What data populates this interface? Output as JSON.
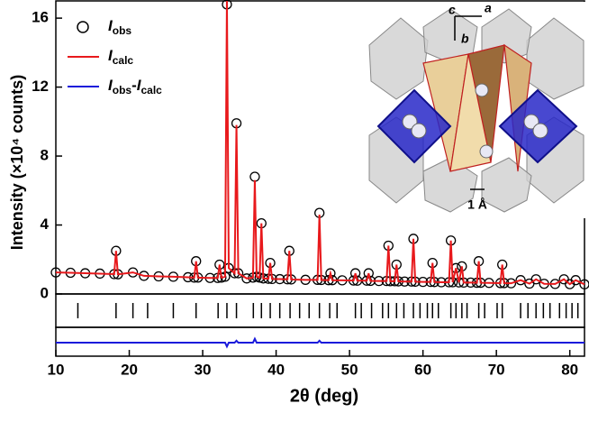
{
  "chart_data": {
    "type": "line",
    "xlabel": "2θ (deg)",
    "ylabel": "Intensity (×10⁴ counts)",
    "xlim": [
      10,
      82
    ],
    "xticks": [
      10,
      20,
      30,
      40,
      50,
      60,
      70,
      80
    ],
    "ylim": [
      0,
      17
    ],
    "yticks": [
      0,
      4,
      8,
      12,
      16
    ],
    "difflim": [
      -0.6,
      0.6
    ],
    "x": [
      10,
      12,
      14,
      16,
      17.95,
      18.2,
      18.45,
      20.5,
      22,
      24,
      26,
      28,
      28.85,
      29.1,
      29.35,
      31,
      32.05,
      32.3,
      32.55,
      33.05,
      33.3,
      33.55,
      34.35,
      34.6,
      34.85,
      36,
      36.85,
      37.1,
      37.35,
      37.75,
      38.0,
      38.25,
      38.95,
      39.2,
      39.45,
      40.5,
      41.55,
      41.8,
      42.05,
      44,
      45.65,
      45.9,
      46.15,
      47.15,
      47.4,
      47.65,
      49,
      50.55,
      50.8,
      51.05,
      52.35,
      52.6,
      52.85,
      54,
      55.05,
      55.3,
      55.55,
      56.15,
      56.4,
      56.65,
      57.5,
      58.45,
      58.7,
      58.95,
      60,
      61.05,
      61.3,
      61.55,
      62.5,
      63.55,
      63.8,
      64.05,
      64.5,
      64.9,
      65.3,
      65.55,
      66.5,
      67.35,
      67.6,
      67.85,
      69,
      70.55,
      70.8,
      71.05,
      72,
      73.3,
      74.5,
      75.4,
      76.5,
      78,
      79.2,
      80,
      80.8,
      82
    ],
    "series": [
      {
        "name": [
          {
            "text": "I",
            "style": "italic"
          },
          {
            "text": "obs",
            "style": "sub"
          }
        ],
        "color": "#000000",
        "marker": "circle",
        "values": [
          1.25,
          1.23,
          1.2,
          1.18,
          1.15,
          2.5,
          1.14,
          1.25,
          1.05,
          1.02,
          1.0,
          0.97,
          0.95,
          1.9,
          0.95,
          0.93,
          0.93,
          1.7,
          0.95,
          1.0,
          16.8,
          1.5,
          1.2,
          9.9,
          1.2,
          0.9,
          0.95,
          6.8,
          1.0,
          0.95,
          4.1,
          0.9,
          0.88,
          1.8,
          0.87,
          0.86,
          0.85,
          2.5,
          0.84,
          0.82,
          0.82,
          4.7,
          0.81,
          0.8,
          1.2,
          0.8,
          0.79,
          0.78,
          1.2,
          0.77,
          0.77,
          1.2,
          0.76,
          0.75,
          0.75,
          2.8,
          0.74,
          0.74,
          1.7,
          0.73,
          0.72,
          0.72,
          3.2,
          0.71,
          0.7,
          0.7,
          1.8,
          0.69,
          0.68,
          0.68,
          3.1,
          0.68,
          1.5,
          0.67,
          1.6,
          0.66,
          0.66,
          0.65,
          1.9,
          0.65,
          0.64,
          0.63,
          1.7,
          0.63,
          0.62,
          0.8,
          0.6,
          0.85,
          0.59,
          0.58,
          0.85,
          0.57,
          0.8,
          0.56
        ]
      },
      {
        "name": [
          {
            "text": "I",
            "style": "italic"
          },
          {
            "text": "calc",
            "style": "sub"
          }
        ],
        "color": "#e8191c",
        "marker": "line",
        "values": [
          1.25,
          1.23,
          1.2,
          1.18,
          1.15,
          2.5,
          1.14,
          1.25,
          1.05,
          1.02,
          1.0,
          0.97,
          0.95,
          1.9,
          0.95,
          0.93,
          0.93,
          1.7,
          0.95,
          1.0,
          17,
          1.5,
          1.2,
          9.8,
          1.2,
          0.9,
          0.95,
          6.6,
          1.0,
          0.95,
          4.1,
          0.9,
          0.88,
          1.8,
          0.87,
          0.86,
          0.85,
          2.5,
          0.84,
          0.82,
          0.82,
          4.6,
          0.81,
          0.8,
          1.2,
          0.8,
          0.79,
          0.78,
          1.2,
          0.77,
          0.77,
          1.2,
          0.76,
          0.75,
          0.75,
          2.8,
          0.74,
          0.74,
          1.7,
          0.73,
          0.72,
          0.72,
          3.2,
          0.71,
          0.7,
          0.7,
          1.8,
          0.69,
          0.68,
          0.68,
          3.1,
          0.68,
          1.5,
          0.67,
          1.6,
          0.66,
          0.66,
          0.65,
          1.9,
          0.65,
          0.64,
          0.63,
          1.7,
          0.63,
          0.62,
          0.8,
          0.6,
          0.85,
          0.59,
          0.58,
          0.85,
          0.57,
          0.8,
          0.56
        ]
      },
      {
        "name": [
          {
            "text": "I",
            "style": "italic"
          },
          {
            "text": "obs",
            "style": "sub"
          },
          {
            "text": "-",
            "style": "plain"
          },
          {
            "text": "I",
            "style": "italic"
          },
          {
            "text": "calc",
            "style": "sub"
          }
        ],
        "color": "#1a1adb",
        "marker": "line",
        "axis": "diff",
        "values": [
          0,
          0,
          0,
          0,
          0,
          0,
          0,
          0,
          0,
          0,
          0,
          0,
          0,
          0,
          0,
          0,
          0,
          0,
          0,
          0,
          -0.2,
          0,
          0,
          0.1,
          0,
          0,
          0,
          0.2,
          0,
          0,
          0,
          0,
          0,
          0,
          0,
          0,
          0,
          0,
          0,
          0,
          0,
          0.1,
          0,
          0,
          0,
          0,
          0,
          0,
          0,
          0,
          0,
          0,
          0,
          0,
          0,
          0,
          0,
          0,
          0,
          0,
          0,
          0,
          0,
          0,
          0,
          0,
          0,
          0,
          0,
          0,
          0,
          0,
          0,
          0,
          0,
          0,
          0,
          0,
          0,
          0,
          0,
          0,
          0,
          0,
          0,
          0,
          0,
          0,
          0,
          0,
          0,
          0,
          0,
          0
        ]
      }
    ],
    "reflections": [
      13,
      18.2,
      20.5,
      22.5,
      26,
      29.1,
      32.1,
      33.3,
      34.6,
      36.9,
      38,
      39.2,
      40.5,
      41.9,
      43.2,
      44.5,
      45.9,
      47.3,
      48.3,
      50.8,
      51.6,
      53,
      54.5,
      55.3,
      56.4,
      57.4,
      58.7,
      59.6,
      60.6,
      61.3,
      62.1,
      63.8,
      64.5,
      65.3,
      66,
      67.6,
      68.4,
      70.1,
      70.8,
      73.3,
      74.3,
      75.4,
      76.4,
      77.3,
      78.6,
      79.5,
      80.3,
      81.1
    ],
    "inset": {
      "axis_c": "c",
      "axis_a": "a",
      "axis_b": "b",
      "scale": "1 Å"
    }
  }
}
